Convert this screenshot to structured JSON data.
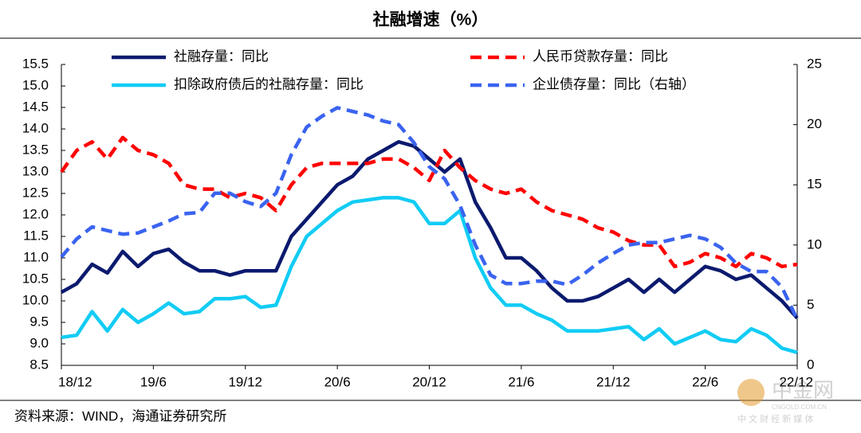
{
  "chart_data": {
    "type": "line",
    "title": "社融增速（%）",
    "source": "资料来源：WIND，海通证券研究所",
    "watermark": {
      "logo": "中金网",
      "site": "CNGOLD.COM.CN",
      "tagline": "中 文 财 经 新 媒 体"
    },
    "categories": [
      "18/12",
      null,
      null,
      null,
      null,
      null,
      "19/6",
      null,
      null,
      null,
      null,
      null,
      "19/12",
      null,
      null,
      null,
      null,
      null,
      "20/6",
      null,
      null,
      null,
      null,
      null,
      "20/12",
      null,
      null,
      null,
      null,
      null,
      "21/6",
      null,
      null,
      null,
      null,
      null,
      "21/12",
      null,
      null,
      null,
      null,
      null,
      "22/6",
      null,
      null,
      null,
      null,
      null,
      "22/12"
    ],
    "ylim": [
      8.5,
      15.5
    ],
    "yticks": [
      8.5,
      {
        "value": 9,
        "label": "9.0"
      },
      9.5,
      {
        "value": 10,
        "label": "10.0"
      },
      10.5,
      {
        "value": 11,
        "label": "11.0"
      },
      11.5,
      {
        "value": 12,
        "label": "12.0"
      },
      12.5,
      {
        "value": 13,
        "label": "13.0"
      },
      13.5,
      {
        "value": 14,
        "label": "14.0"
      },
      14.5,
      {
        "value": 15,
        "label": "15.0"
      },
      15.5
    ],
    "y2lim": [
      0,
      25
    ],
    "y2ticks": [
      0,
      5,
      10,
      15,
      20,
      25
    ],
    "series": [
      {
        "name": "社融存量：同比",
        "color": "#0b1a6e",
        "line_style": "solid",
        "values": [
          10.2,
          10.4,
          10.85,
          10.65,
          11.15,
          10.8,
          11.1,
          11.2,
          10.9,
          10.7,
          10.7,
          10.6,
          10.7,
          10.7,
          10.7,
          11.5,
          11.9,
          12.3,
          12.7,
          12.9,
          13.3,
          13.5,
          13.7,
          13.6,
          13.3,
          13.0,
          13.3,
          12.3,
          11.7,
          11.0,
          11.0,
          10.7,
          10.3,
          10.0,
          10.0,
          10.1,
          10.3,
          10.5,
          10.2,
          10.5,
          10.2,
          10.5,
          10.8,
          10.7,
          10.5,
          10.6,
          10.3,
          10.0,
          9.6
        ]
      },
      {
        "name": "人民币贷款存量：同比",
        "color": "#ff0000",
        "line_style": "dashed",
        "values": [
          13.0,
          13.5,
          13.7,
          13.3,
          13.8,
          13.5,
          13.4,
          13.2,
          12.7,
          12.6,
          12.6,
          12.4,
          12.5,
          12.4,
          12.1,
          12.7,
          13.1,
          13.2,
          13.2,
          13.2,
          13.2,
          13.3,
          13.3,
          13.1,
          12.8,
          13.5,
          13.1,
          12.8,
          12.6,
          12.5,
          12.6,
          12.3,
          12.1,
          12.0,
          11.9,
          11.7,
          11.6,
          11.4,
          11.3,
          11.3,
          10.8,
          10.9,
          11.1,
          11.0,
          10.8,
          11.1,
          11.0,
          10.8,
          10.85
        ]
      },
      {
        "name": "扣除政府债后的社融存量：同比",
        "color": "#11ccf5",
        "line_style": "solid",
        "values": [
          9.15,
          9.2,
          9.75,
          9.3,
          9.8,
          9.5,
          9.7,
          9.95,
          9.7,
          9.75,
          10.05,
          10.05,
          10.1,
          9.85,
          9.9,
          10.8,
          11.5,
          11.8,
          12.1,
          12.3,
          12.35,
          12.4,
          12.4,
          12.3,
          11.8,
          11.8,
          12.1,
          11.0,
          10.3,
          9.9,
          9.9,
          9.7,
          9.55,
          9.3,
          9.3,
          9.3,
          9.35,
          9.4,
          9.1,
          9.35,
          9.0,
          9.15,
          9.3,
          9.1,
          9.05,
          9.35,
          9.2,
          8.9,
          8.8
        ]
      },
      {
        "name": "企业债存量：同比（右轴）",
        "color": "#3a63f0",
        "line_style": "dashed",
        "axis": "y2",
        "values": [
          9.0,
          10.5,
          11.5,
          11.2,
          10.9,
          11.0,
          11.5,
          12.0,
          12.6,
          12.7,
          14.3,
          14.3,
          13.6,
          13.2,
          14.3,
          17.5,
          19.8,
          20.7,
          21.4,
          21.1,
          20.8,
          20.3,
          20.0,
          18.5,
          16.5,
          15.5,
          13.3,
          10.0,
          7.5,
          6.8,
          6.8,
          7.0,
          7.0,
          6.7,
          7.5,
          8.5,
          9.3,
          10.0,
          10.2,
          10.2,
          10.5,
          10.8,
          10.5,
          9.8,
          8.5,
          7.8,
          7.8,
          6.5,
          3.8
        ]
      }
    ]
  }
}
